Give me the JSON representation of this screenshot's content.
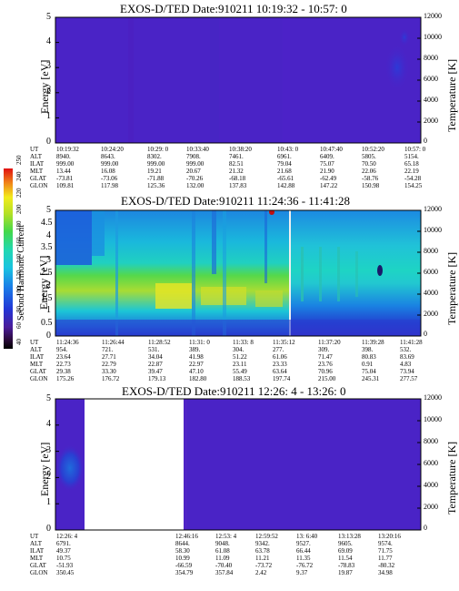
{
  "chart_data": [
    {
      "type": "heatmap",
      "title": "EXOS-D/TED   Date:910211  10:19:32 - 10:57: 0",
      "ylabel": "Energy [eV]",
      "y2label": "Temperature [K]",
      "ylim": [
        0,
        5
      ],
      "y2lim": [
        0,
        12000
      ],
      "yticks": [
        "0",
        "1",
        "2",
        "3",
        "4",
        "5"
      ],
      "y2ticks": [
        "0",
        "2000",
        "4000",
        "6000",
        "8000",
        "10000",
        "12000"
      ],
      "rows": [
        {
          "label": "UT",
          "values": [
            "10:19:32",
            "10:24:20",
            "10:29: 0",
            "10:33:40",
            "10:38:20",
            "10:43: 0",
            "10:47:40",
            "10:52:20",
            "10:57: 0"
          ]
        },
        {
          "label": "ALT",
          "values": [
            "8940.",
            "8643.",
            "8302.",
            "7908.",
            "7461.",
            "6961.",
            "6409.",
            "5805.",
            "5154."
          ]
        },
        {
          "label": "ILAT",
          "values": [
            "999.00",
            "999.00",
            "999.00",
            "999.00",
            "82.51",
            "79.04",
            "75.07",
            "70.50",
            "65.18"
          ]
        },
        {
          "label": "MLT",
          "values": [
            "13.44",
            "16.08",
            "19.21",
            "20.67",
            "21.32",
            "21.68",
            "21.90",
            "22.06",
            "22.19"
          ]
        },
        {
          "label": "GLAT",
          "values": [
            "-73.81",
            "-73.06",
            "-71.88",
            "-70.26",
            "-68.18",
            "-65.61",
            "-62.49",
            "-58.76",
            "-54.28"
          ]
        },
        {
          "label": "GLON",
          "values": [
            "109.81",
            "117.98",
            "125.36",
            "132.00",
            "137.83",
            "142.88",
            "147.22",
            "150.98",
            "154.25"
          ]
        }
      ],
      "regions": [
        {
          "x0": 0,
          "x1": 1,
          "y0": 0,
          "y1": 5,
          "level": "low-purple"
        }
      ]
    },
    {
      "type": "heatmap",
      "title": "EXOS-D/TED   Date:910211  11:24:36 - 11:41:28",
      "ylabel": "Energy [eV]",
      "y2label": "Temperature [K]",
      "colorbar_label": "Second Harmonic Current",
      "colorbar_ticks": [
        "40",
        "60",
        "80",
        "100",
        "120",
        "140",
        "160",
        "180",
        "200",
        "220",
        "240",
        "250"
      ],
      "ylim": [
        0,
        5
      ],
      "y2lim": [
        0,
        12000
      ],
      "yticks": [
        "0",
        "0.5",
        "1",
        "1.5",
        "2",
        "2.5",
        "3",
        "3.5",
        "4",
        "4.5",
        "5"
      ],
      "y2ticks": [
        "0",
        "2000",
        "4000",
        "6000",
        "8000",
        "10000",
        "12000"
      ],
      "rows": [
        {
          "label": "UT",
          "values": [
            "11:24:36",
            "11:26:44",
            "11:28:52",
            "11:31: 0",
            "11:33: 8",
            "11:35:12",
            "11:37:20",
            "11:39:28",
            "11:41:28"
          ]
        },
        {
          "label": "ALT",
          "values": [
            "954.",
            "721.",
            "531.",
            "389.",
            "304.",
            "277.",
            "309.",
            "398.",
            "532."
          ]
        },
        {
          "label": "ILAT",
          "values": [
            "23.64",
            "27.71",
            "34.04",
            "41.98",
            "51.22",
            "61.06",
            "71.47",
            "80.83",
            "83.69"
          ]
        },
        {
          "label": "MLT",
          "values": [
            "22.73",
            "22.79",
            "22.87",
            "22.97",
            "23.11",
            "23.33",
            "23.76",
            "0.91",
            "4.83"
          ]
        },
        {
          "label": "GLAT",
          "values": [
            "29.38",
            "33.30",
            "39.47",
            "47.10",
            "55.49",
            "63.64",
            "70.96",
            "75.04",
            "73.94"
          ]
        },
        {
          "label": "GLON",
          "values": [
            "175.26",
            "176.72",
            "179.13",
            "182.80",
            "188.53",
            "197.74",
            "215.00",
            "245.31",
            "277.57"
          ]
        }
      ]
    },
    {
      "type": "heatmap",
      "title": "EXOS-D/TED   Date:910211  12:26: 4 - 13:26: 0",
      "ylabel": "Energy [eV]",
      "y2label": "Temperature [K]",
      "ylim": [
        0,
        5
      ],
      "y2lim": [
        0,
        12000
      ],
      "yticks": [
        "0",
        "1",
        "2",
        "3",
        "4",
        "5"
      ],
      "y2ticks": [
        "0",
        "2000",
        "4000",
        "6000",
        "8000",
        "10000",
        "12000"
      ],
      "rows": [
        {
          "label": "UT",
          "values": [
            "12:26: 4",
            "",
            "12:46:16",
            "12:53: 4",
            "12:59:52",
            "13: 6:40",
            "13:13:28",
            "13:20:16"
          ]
        },
        {
          "label": "ALT",
          "values": [
            "6791.",
            "",
            "8644.",
            "9048.",
            "9342.",
            "9527.",
            "9605.",
            "9574."
          ]
        },
        {
          "label": "ILAT",
          "values": [
            "49.37",
            "",
            "58.30",
            "61.08",
            "63.78",
            "66.44",
            "69.09",
            "71.75"
          ]
        },
        {
          "label": "MLT",
          "values": [
            "10.75",
            "",
            "10.99",
            "11.09",
            "11.21",
            "11.35",
            "11.54",
            "11.77"
          ]
        },
        {
          "label": "GLAT",
          "values": [
            "-51.93",
            "",
            "-66.59",
            "-70.40",
            "-73.72",
            "-76.72",
            "-78.83",
            "-80.32"
          ]
        },
        {
          "label": "GLON",
          "values": [
            "350.45",
            "",
            "354.79",
            "357.84",
            "2.42",
            "9.37",
            "19.87",
            "34.98"
          ]
        }
      ],
      "data_gap": {
        "from": "12:30",
        "to": "12:46:16"
      }
    }
  ]
}
